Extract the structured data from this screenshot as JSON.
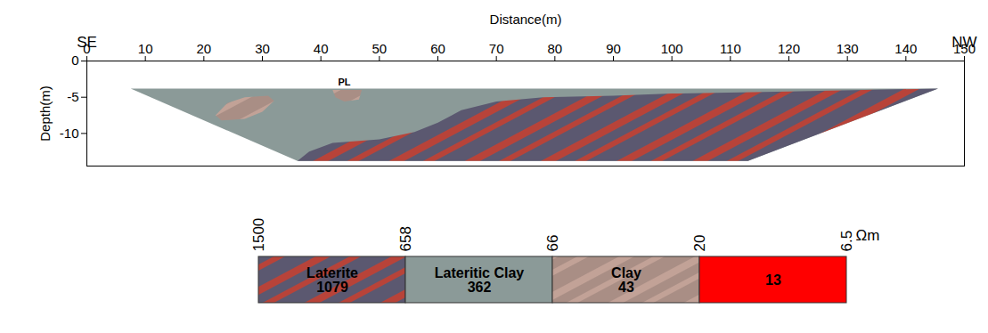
{
  "chart_data": {
    "type": "resistivity_section",
    "x_label": "Distance(m)",
    "y_label": "Depth(m)",
    "xlim": [
      0,
      150
    ],
    "xticks": [
      0,
      10,
      20,
      30,
      40,
      50,
      60,
      70,
      80,
      90,
      100,
      110,
      120,
      130,
      140,
      150
    ],
    "ylim": [
      -14.5,
      0
    ],
    "yticks": [
      0,
      -5,
      -10
    ],
    "annotations": [
      {
        "text": "SE",
        "x": 0
      },
      {
        "text": "NW",
        "x": 150
      },
      {
        "text": "PL",
        "x": 44,
        "y": -3
      }
    ],
    "regions": [
      {
        "class": "Lateritic Clay",
        "polygon": [
          [
            7.5,
            -3.8
          ],
          [
            145.5,
            -3.8
          ],
          [
            113,
            -13.8
          ],
          [
            36,
            -13.8
          ]
        ]
      },
      {
        "class": "Laterite",
        "polygon": [
          [
            36,
            -13.8
          ],
          [
            38,
            -12.5
          ],
          [
            42,
            -11.3
          ],
          [
            50,
            -10.8
          ],
          [
            56,
            -9.8
          ],
          [
            60,
            -8.5
          ],
          [
            64,
            -6.8
          ],
          [
            70,
            -5.6
          ],
          [
            78,
            -5
          ],
          [
            90,
            -4.8
          ],
          [
            100,
            -4.5
          ],
          [
            120,
            -4.2
          ],
          [
            145.5,
            -3.8
          ],
          [
            113,
            -13.8
          ]
        ]
      },
      {
        "class": "Clay",
        "polygon": [
          [
            22,
            -7.5
          ],
          [
            24,
            -5.8
          ],
          [
            27,
            -5
          ],
          [
            31,
            -4.8
          ],
          [
            32,
            -5.5
          ],
          [
            30,
            -7
          ],
          [
            27,
            -8
          ],
          [
            23,
            -8.2
          ]
        ]
      },
      {
        "class": "Clay",
        "polygon": [
          [
            42,
            -4
          ],
          [
            47,
            -4
          ],
          [
            46.5,
            -5.3
          ],
          [
            44,
            -5.6
          ],
          [
            42.5,
            -5
          ]
        ]
      }
    ],
    "color_scale": {
      "unit": "Ωm",
      "ticks": [
        1500,
        658,
        66,
        20,
        6.5
      ],
      "classes": [
        {
          "name": "Laterite",
          "value": 1079,
          "color": "#5b5870"
        },
        {
          "name": "Lateritic Clay",
          "value": 362,
          "color": "#8b9a98"
        },
        {
          "name": "Clay",
          "value": 43,
          "color": "#a98e85"
        },
        {
          "value": 13,
          "color": "#ff0000"
        }
      ]
    }
  }
}
